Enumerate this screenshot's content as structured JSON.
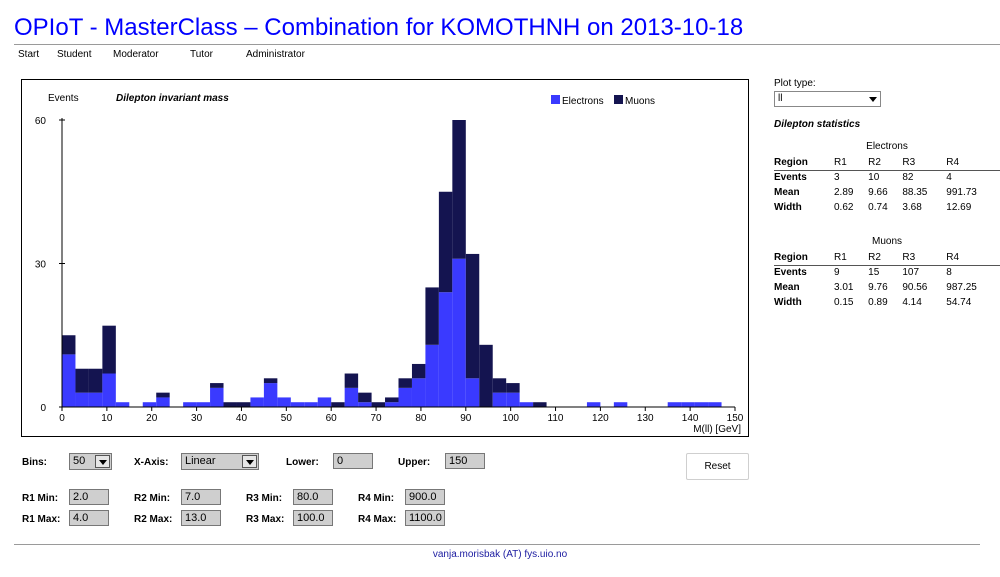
{
  "title": "OPIoT - MasterClass – Combination for KOMOTHNH on 2013-10-18",
  "nav": [
    "Start",
    "Student",
    "Moderator",
    "Tutor",
    "Administrator"
  ],
  "chart_data": {
    "type": "bar",
    "stacked": true,
    "title": "Dilepton invariant mass",
    "ylabel": "Events",
    "xlabel": "M(ll) [GeV]",
    "xlim": [
      0,
      150
    ],
    "ylim": [
      0,
      60
    ],
    "bin_width": 3,
    "x_ticks": [
      0,
      10,
      20,
      30,
      40,
      50,
      60,
      70,
      80,
      90,
      100,
      110,
      120,
      130,
      140,
      150
    ],
    "y_ticks": [
      0,
      30,
      60
    ],
    "legend_position": "top-right",
    "grid": false,
    "x": [
      0,
      3,
      6,
      9,
      12,
      15,
      18,
      21,
      24,
      27,
      30,
      33,
      36,
      39,
      42,
      45,
      48,
      51,
      54,
      57,
      60,
      63,
      66,
      69,
      72,
      75,
      78,
      81,
      84,
      87,
      90,
      93,
      96,
      99,
      102,
      105,
      108,
      111,
      114,
      117,
      120,
      123,
      126,
      129,
      132,
      135,
      138,
      141,
      144,
      147
    ],
    "series": [
      {
        "name": "Electrons",
        "color": "#3a3aff",
        "values": [
          11,
          3,
          3,
          7,
          1,
          0,
          1,
          2,
          0,
          1,
          1,
          4,
          0,
          0,
          2,
          5,
          2,
          1,
          1,
          2,
          0,
          4,
          1,
          0,
          1,
          4,
          6,
          13,
          24,
          31,
          6,
          0,
          3,
          3,
          1,
          0,
          0,
          0,
          0,
          1,
          0,
          1,
          0,
          0,
          0,
          1,
          1,
          1,
          1,
          0
        ]
      },
      {
        "name": "Muons",
        "color": "#141450",
        "values": [
          4,
          5,
          5,
          10,
          0,
          0,
          0,
          1,
          0,
          0,
          0,
          1,
          1,
          1,
          0,
          1,
          0,
          0,
          0,
          0,
          1,
          3,
          2,
          1,
          1,
          2,
          3,
          12,
          21,
          29,
          26,
          13,
          3,
          2,
          0,
          1,
          0,
          0,
          0,
          0,
          0,
          0,
          0,
          0,
          0,
          0,
          0,
          0,
          0,
          0
        ]
      }
    ]
  },
  "controls": {
    "bins_label": "Bins:",
    "bins_value": "50",
    "xaxis_label": "X-Axis:",
    "xaxis_value": "Linear",
    "lower_label": "Lower:",
    "lower_value": "0",
    "upper_label": "Upper:",
    "upper_value": "150",
    "reset_label": "Reset",
    "r1_min_label": "R1 Min:",
    "r1_min_value": "2.0",
    "r1_max_label": "R1 Max:",
    "r1_max_value": "4.0",
    "r2_min_label": "R2 Min:",
    "r2_min_value": "7.0",
    "r2_max_label": "R2 Max:",
    "r2_max_value": "13.0",
    "r3_min_label": "R3 Min:",
    "r3_min_value": "80.0",
    "r3_max_label": "R3 Max:",
    "r3_max_value": "100.0",
    "r4_min_label": "R4 Min:",
    "r4_min_value": "900.0",
    "r4_max_label": "R4 Max:",
    "r4_max_value": "1100.0"
  },
  "panel": {
    "plot_type_label": "Plot type:",
    "plot_type_value": "ll",
    "stats_title": "Dilepton statistics",
    "electrons": {
      "caption": "Electrons",
      "header": [
        "Region",
        "R1",
        "R2",
        "R3",
        "R4"
      ],
      "rows": [
        [
          "Events",
          "3",
          "10",
          "82",
          "4"
        ],
        [
          "Mean",
          "2.89",
          "9.66",
          "88.35",
          "991.73"
        ],
        [
          "Width",
          "0.62",
          "0.74",
          "3.68",
          "12.69"
        ]
      ]
    },
    "muons": {
      "caption": "Muons",
      "header": [
        "Region",
        "R1",
        "R2",
        "R3",
        "R4"
      ],
      "rows": [
        [
          "Events",
          "9",
          "15",
          "107",
          "8"
        ],
        [
          "Mean",
          "3.01",
          "9.76",
          "90.56",
          "987.25"
        ],
        [
          "Width",
          "0.15",
          "0.89",
          "4.14",
          "54.74"
        ]
      ]
    }
  },
  "footer": "vanja.morisbak (AT) fys.uio.no"
}
